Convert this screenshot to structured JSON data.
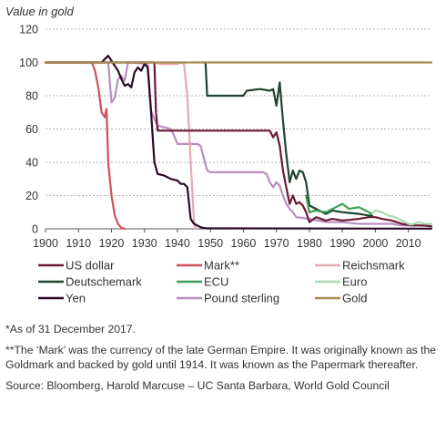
{
  "chart_data": {
    "type": "line",
    "ylabel": "Value in gold",
    "xlabel": "",
    "xlim": [
      1900,
      2017
    ],
    "ylim": [
      0,
      120
    ],
    "xticks": [
      1900,
      1910,
      1920,
      1930,
      1940,
      1950,
      1960,
      1970,
      1980,
      1990,
      2000,
      2010
    ],
    "yticks": [
      0,
      20,
      40,
      60,
      80,
      100,
      120
    ],
    "grid": "horizontal dashed",
    "legend_position": "bottom",
    "series": [
      {
        "name": "US dollar",
        "color": "#6b1a36",
        "x": [
          1900,
          1933,
          1933.5,
          1934,
          1968,
          1969,
          1970,
          1971,
          1972,
          1973,
          1974,
          1975,
          1976,
          1977,
          1978,
          1979,
          1980,
          1982,
          1985,
          1987,
          1990,
          1995,
          1998,
          2000,
          2002,
          2005,
          2008,
          2011,
          2013,
          2015,
          2017
        ],
        "y": [
          100,
          100,
          70,
          59,
          59,
          55,
          58,
          50,
          35,
          25,
          15,
          20,
          15,
          16,
          14,
          10,
          4,
          7,
          5,
          6,
          5,
          6,
          7,
          7,
          6,
          5,
          3,
          2,
          2,
          2,
          1.5
        ]
      },
      {
        "name": "Mark**",
        "color": "#d0505a",
        "x": [
          1900,
          1914,
          1915,
          1916,
          1917,
          1918,
          1918.5,
          1919,
          1920,
          1921,
          1922,
          1923,
          1924
        ],
        "y": [
          100,
          100,
          95,
          85,
          70,
          67,
          72,
          40,
          20,
          8,
          3,
          0.5,
          0
        ]
      },
      {
        "name": "Reichsmark",
        "color": "#e5a9b2",
        "x": [
          1924,
          1930,
          1932,
          1933,
          1935,
          1938,
          1940,
          1941,
          1942,
          1943,
          1944,
          1945,
          1945.5
        ],
        "y": [
          100,
          100,
          100,
          100,
          99,
          99,
          99,
          100,
          99,
          80,
          40,
          5,
          0
        ]
      },
      {
        "name": "Deutschemark",
        "color": "#1f4530",
        "x": [
          1948,
          1948.5,
          1949,
          1960,
          1961,
          1965,
          1968,
          1969,
          1970,
          1971,
          1972,
          1973,
          1974,
          1975,
          1976,
          1977,
          1978,
          1979,
          1980,
          1982,
          1985,
          1987,
          1990,
          1995,
          1998,
          1999
        ],
        "y": [
          100,
          100,
          80,
          80,
          83,
          84,
          83,
          84,
          74,
          88,
          65,
          45,
          28,
          35,
          30,
          35,
          34,
          28,
          14,
          12,
          9,
          11,
          10,
          9,
          8,
          8
        ]
      },
      {
        "name": "ECU",
        "color": "#3c9e50",
        "x": [
          1979,
          1980,
          1982,
          1985,
          1987,
          1988,
          1990,
          1992,
          1995,
          1997,
          1998,
          1999
        ],
        "y": [
          20,
          10,
          11,
          10,
          12,
          13,
          15,
          12,
          13,
          11,
          10,
          9
        ]
      },
      {
        "name": "Euro",
        "color": "#a9d9b3",
        "x": [
          1999,
          2000,
          2002,
          2004,
          2006,
          2008,
          2010,
          2011,
          2013,
          2015,
          2017
        ],
        "y": [
          9,
          11,
          10,
          8,
          7,
          5,
          3,
          2.5,
          4,
          3,
          3
        ]
      },
      {
        "name": "Yen",
        "color": "#2a0a26",
        "x": [
          1900,
          1917,
          1918,
          1919,
          1920,
          1921,
          1922,
          1923,
          1924,
          1925,
          1926,
          1927,
          1928,
          1929,
          1930,
          1931,
          1932,
          1933,
          1934,
          1936,
          1938,
          1940,
          1941,
          1942,
          1943,
          1944,
          1945,
          1946,
          1947,
          1948,
          1949,
          1950,
          2017
        ],
        "y": [
          100,
          100,
          102,
          104,
          101,
          98,
          95,
          90,
          86,
          87,
          85,
          94,
          97,
          95,
          99,
          97,
          70,
          40,
          33,
          32,
          30,
          29,
          27,
          27,
          25,
          6,
          3,
          2,
          1,
          0.5,
          0.3,
          0.3,
          0.1
        ]
      },
      {
        "name": "Pound sterling",
        "color": "#b88fc0",
        "x": [
          1900,
          1919,
          1920,
          1921,
          1922,
          1923,
          1924,
          1925,
          1926,
          1931,
          1932,
          1933,
          1934,
          1936,
          1938,
          1939,
          1940,
          1942,
          1946,
          1947,
          1949,
          1950,
          1966,
          1967,
          1968,
          1969,
          1970,
          1971,
          1972,
          1973,
          1974,
          1975,
          1976,
          1980,
          1985,
          1990,
          1995,
          2000,
          2005,
          2008,
          2010,
          2013,
          2017
        ],
        "y": [
          100,
          100,
          76,
          79,
          90,
          92,
          89,
          100,
          100,
          99,
          71,
          66,
          62,
          61,
          60,
          56,
          51,
          51,
          51,
          50,
          35,
          34,
          34,
          33,
          28,
          25,
          28,
          26,
          20,
          15,
          12,
          10,
          7,
          6,
          4,
          4,
          3,
          3,
          3,
          2,
          2,
          2,
          1.5
        ]
      },
      {
        "name": "Gold",
        "color": "#a68a52",
        "x": [
          1900,
          2017
        ],
        "y": [
          100,
          100
        ]
      }
    ]
  },
  "notes": {
    "as_of": "*As of 31 December 2017.",
    "mark_note": "**The ‘Mark’ was the currency of the late German Empire. It was originally known as the Goldmark and backed by gold until 1914. It was known as the Papermark thereafter.",
    "source": "Source: Bloomberg, Harold Marcuse – UC Santa Barbara, World Gold Council"
  }
}
